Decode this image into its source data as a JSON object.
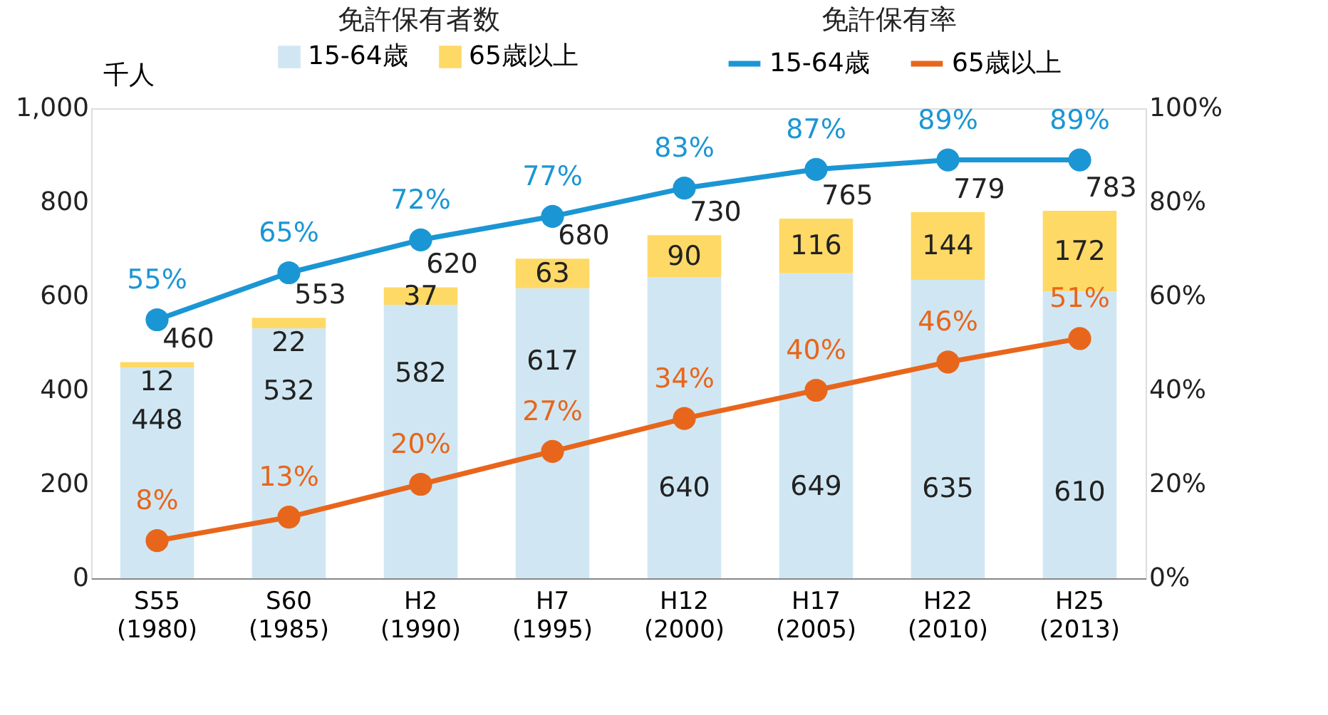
{
  "chart_data": {
    "type": "bar",
    "stacked": true,
    "ylabel": "千人",
    "categories": [
      "S55\n(1980)",
      "S60\n(1985)",
      "H2\n(1990)",
      "H7\n(1995)",
      "H12\n(2000)",
      "H17\n(2005)",
      "H22\n(2010)",
      "H25\n(2013)"
    ],
    "series": [
      {
        "name": "15-64歳",
        "color": "#d0e7f3",
        "values": [
          448,
          532,
          582,
          617,
          640,
          649,
          635,
          610
        ]
      },
      {
        "name": "65歳以上",
        "color": "#ffd966",
        "values": [
          12,
          22,
          37,
          63,
          90,
          116,
          144,
          172
        ]
      },
      {
        "name": "15-64歳",
        "type": "line",
        "axis": "y2",
        "color": "#1b96d4",
        "values": [
          55,
          65,
          72,
          77,
          83,
          87,
          89,
          89
        ],
        "value_labels": [
          "55%",
          "65%",
          "72%",
          "77%",
          "83%",
          "87%",
          "89%",
          "89%"
        ]
      },
      {
        "name": "65歳以上",
        "type": "line",
        "axis": "y2",
        "color": "#e8661c",
        "values": [
          8,
          13,
          20,
          27,
          34,
          40,
          46,
          51
        ],
        "value_labels": [
          "8%",
          "13%",
          "20%",
          "27%",
          "34%",
          "40%",
          "46%",
          "51%"
        ]
      }
    ],
    "totals": [
      "460",
      "553",
      "620",
      "680",
      "730",
      "765",
      "779",
      "783"
    ],
    "data_labels": true,
    "annotations": [
      "免許保有者数",
      "免許保有率"
    ],
    "ylim": [
      0,
      1000
    ],
    "yticks": [
      0,
      200,
      400,
      600,
      800,
      {
        "value": 1000,
        "label": "1,000"
      }
    ],
    "y2lim": [
      0,
      100
    ],
    "y2ticks": [
      {
        "value": 0,
        "label": "0%"
      },
      {
        "value": 20,
        "label": "20%"
      },
      {
        "value": 40,
        "label": "40%"
      },
      {
        "value": 60,
        "label": "60%"
      },
      {
        "value": 80,
        "label": "80%"
      },
      {
        "value": 100,
        "label": "100%"
      }
    ],
    "grid": false,
    "legend": "top",
    "marker": "circle",
    "line_style": "solid"
  }
}
